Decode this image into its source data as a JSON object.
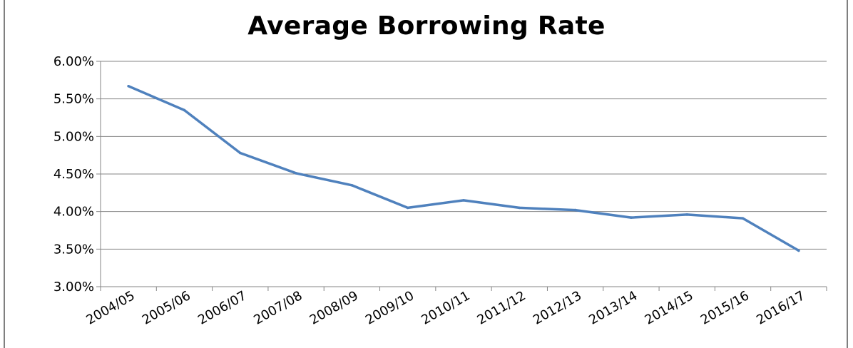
{
  "chart_data": {
    "type": "line",
    "title": "Average Borrowing Rate",
    "categories": [
      "2004/05",
      "2005/06",
      "2006/07",
      "2007/08",
      "2008/09",
      "2009/10",
      "2010/11",
      "2011/12",
      "2012/13",
      "2013/14",
      "2014/15",
      "2015/16",
      "2016/17"
    ],
    "series": [
      {
        "values": [
          5.67,
          5.35,
          4.78,
          4.51,
          4.35,
          4.05,
          4.15,
          4.05,
          4.02,
          3.92,
          3.96,
          3.91,
          3.48
        ]
      }
    ],
    "y_tick_labels": [
      "3.00%",
      "3.50%",
      "4.00%",
      "4.50%",
      "5.00%",
      "5.50%",
      "6.00%"
    ],
    "y_tick_values": [
      3.0,
      3.5,
      4.0,
      4.5,
      5.0,
      5.5,
      6.0
    ],
    "ylim": [
      3.0,
      6.0
    ],
    "grid": true,
    "legend": "none",
    "colors": {
      "line": "#4f81bd",
      "grid": "#868686",
      "axis": "#868686"
    }
  }
}
